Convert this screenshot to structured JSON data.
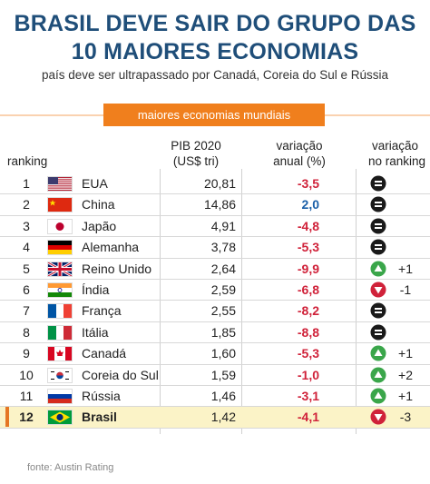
{
  "title_line1": "BRASIL DEVE SAIR DO GRUPO DAS",
  "title_line2": "10 MAIORES ECONOMIAS",
  "subtitle": "país deve ser ultrapassado por Canadá, Coreia do Sul e Rússia",
  "banner": "maiores economias mundiais",
  "headers": {
    "ranking": "ranking",
    "gdp_line1": "PIB 2020",
    "gdp_line2": "(US$ tri)",
    "change_line1": "variação",
    "change_line2": "anual (%)",
    "rankchange_line1": "variação",
    "rankchange_line2": "no ranking"
  },
  "colors": {
    "title": "#1f4e79",
    "accent": "#f07f1d",
    "negative": "#d0223a",
    "positive": "#1a5fa8",
    "up": "#3aa64a",
    "down": "#d0223a",
    "same": "#1a1a1a",
    "highlight": "#fbf3c7"
  },
  "rows": [
    {
      "rank": "1",
      "flag": "usa-flag",
      "country": "EUA",
      "gdp": "20,81",
      "change": "-3,5",
      "trend": "same",
      "move": ""
    },
    {
      "rank": "2",
      "flag": "china-flag",
      "country": "China",
      "gdp": "14,86",
      "change": "2,0",
      "trend": "same",
      "move": ""
    },
    {
      "rank": "3",
      "flag": "japan-flag",
      "country": "Japão",
      "gdp": "4,91",
      "change": "-4,8",
      "trend": "same",
      "move": ""
    },
    {
      "rank": "4",
      "flag": "germany-flag",
      "country": "Alemanha",
      "gdp": "3,78",
      "change": "-5,3",
      "trend": "same",
      "move": ""
    },
    {
      "rank": "5",
      "flag": "uk-flag",
      "country": "Reino Unido",
      "gdp": "2,64",
      "change": "-9,9",
      "trend": "up",
      "move": "+1"
    },
    {
      "rank": "6",
      "flag": "india-flag",
      "country": "Índia",
      "gdp": "2,59",
      "change": "-6,8",
      "trend": "down",
      "move": "-1"
    },
    {
      "rank": "7",
      "flag": "france-flag",
      "country": "França",
      "gdp": "2,55",
      "change": "-8,2",
      "trend": "same",
      "move": ""
    },
    {
      "rank": "8",
      "flag": "italy-flag",
      "country": "Itália",
      "gdp": "1,85",
      "change": "-8,8",
      "trend": "same",
      "move": ""
    },
    {
      "rank": "9",
      "flag": "canada-flag",
      "country": "Canadá",
      "gdp": "1,60",
      "change": "-5,3",
      "trend": "up",
      "move": "+1"
    },
    {
      "rank": "10",
      "flag": "south-korea-flag",
      "country": "Coreia do Sul",
      "gdp": "1,59",
      "change": "-1,0",
      "trend": "up",
      "move": "+2"
    },
    {
      "rank": "11",
      "flag": "russia-flag",
      "country": "Rússia",
      "gdp": "1,46",
      "change": "-3,1",
      "trend": "up",
      "move": "+1"
    },
    {
      "rank": "12",
      "flag": "brazil-flag",
      "country": "Brasil",
      "gdp": "1,42",
      "change": "-4,1",
      "trend": "down",
      "move": "-3",
      "highlight": true
    }
  ],
  "footer": "fonte: Austin Rating"
}
